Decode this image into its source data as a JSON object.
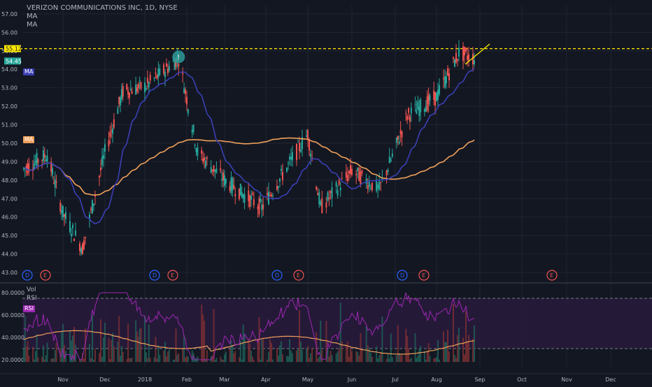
{
  "header": {
    "symbol_title": "VERIZON COMMUNICATIONS INC, 1D, NYSE",
    "indicator_1": "MA",
    "indicator_2": "MA"
  },
  "price_scale": {
    "labels": [
      "57.00",
      "56.00",
      "55.00",
      "54.00",
      "53.00",
      "52.00",
      "51.00",
      "50.00",
      "49.00",
      "48.00",
      "47.00",
      "46.00",
      "45.00",
      "44.00",
      "43.00"
    ],
    "last_price_label": "55.12",
    "last_price_label_2": "54.45",
    "ma_fast_badge": "MA",
    "ma_slow_badge": "MA"
  },
  "time_axis": {
    "labels": [
      "Nov",
      "Dec",
      "2018",
      "Feb",
      "Mar",
      "Apr",
      "May",
      "Jun",
      "Jul",
      "Aug",
      "Sep",
      "Oct",
      "Nov",
      "Dec"
    ]
  },
  "event_markers": [
    {
      "type": "D",
      "label": "D"
    },
    {
      "type": "E",
      "label": "E"
    },
    {
      "type": "D",
      "label": "D"
    },
    {
      "type": "E",
      "label": "E"
    },
    {
      "type": "D",
      "label": "D"
    },
    {
      "type": "E",
      "label": "E"
    },
    {
      "type": "D",
      "label": "D"
    },
    {
      "type": "E",
      "label": "E"
    },
    {
      "type": "E",
      "label": "E"
    }
  ],
  "highlight_marker": {
    "label": "!"
  },
  "lower_pane": {
    "legend_vol": "Vol",
    "legend_rsi": "RSI",
    "rsi_badge": "RSI",
    "scale_labels": [
      "80.0000",
      "60.0000",
      "40.0000",
      "20.0000"
    ],
    "overbought": 75,
    "oversold": 30
  },
  "colors": {
    "background": "#131722",
    "grid": "#1f2433",
    "up_candle": "#26a69a",
    "down_candle": "#ef5350",
    "ma_fast": "#3a3fb5",
    "ma_slow": "#f0a05a",
    "resistance": "#ffea00",
    "rsi_line": "#9c27b0",
    "rsi_band": "#2a1a3e",
    "dividend_marker": "#2962ff",
    "earnings_marker": "#ef5350"
  },
  "chart_data": {
    "type": "candlestick",
    "title": "VERIZON COMMUNICATIONS INC, 1D, NYSE",
    "ylim": [
      43,
      57.3
    ],
    "resistance_level": 55.12,
    "key_prices": [
      {
        "date": "2017-10-20",
        "price": 49.4
      },
      {
        "date": "2017-11-01",
        "price": 46.2
      },
      {
        "date": "2017-11-15",
        "price": 44.3
      },
      {
        "date": "2017-12-01",
        "price": 49.5
      },
      {
        "date": "2017-12-15",
        "price": 52.8
      },
      {
        "date": "2018-01-02",
        "price": 53.1
      },
      {
        "date": "2018-01-26",
        "price": 54.6
      },
      {
        "date": "2018-02-09",
        "price": 49.5
      },
      {
        "date": "2018-03-01",
        "price": 48.0
      },
      {
        "date": "2018-03-29",
        "price": 46.5
      },
      {
        "date": "2018-05-01",
        "price": 50.5
      },
      {
        "date": "2018-05-10",
        "price": 46.5
      },
      {
        "date": "2018-06-01",
        "price": 48.5
      },
      {
        "date": "2018-06-20",
        "price": 47.5
      },
      {
        "date": "2018-07-10",
        "price": 51.5
      },
      {
        "date": "2018-08-01",
        "price": 52.5
      },
      {
        "date": "2018-08-17",
        "price": 54.9
      },
      {
        "date": "2018-08-28",
        "price": 54.6
      }
    ]
  }
}
